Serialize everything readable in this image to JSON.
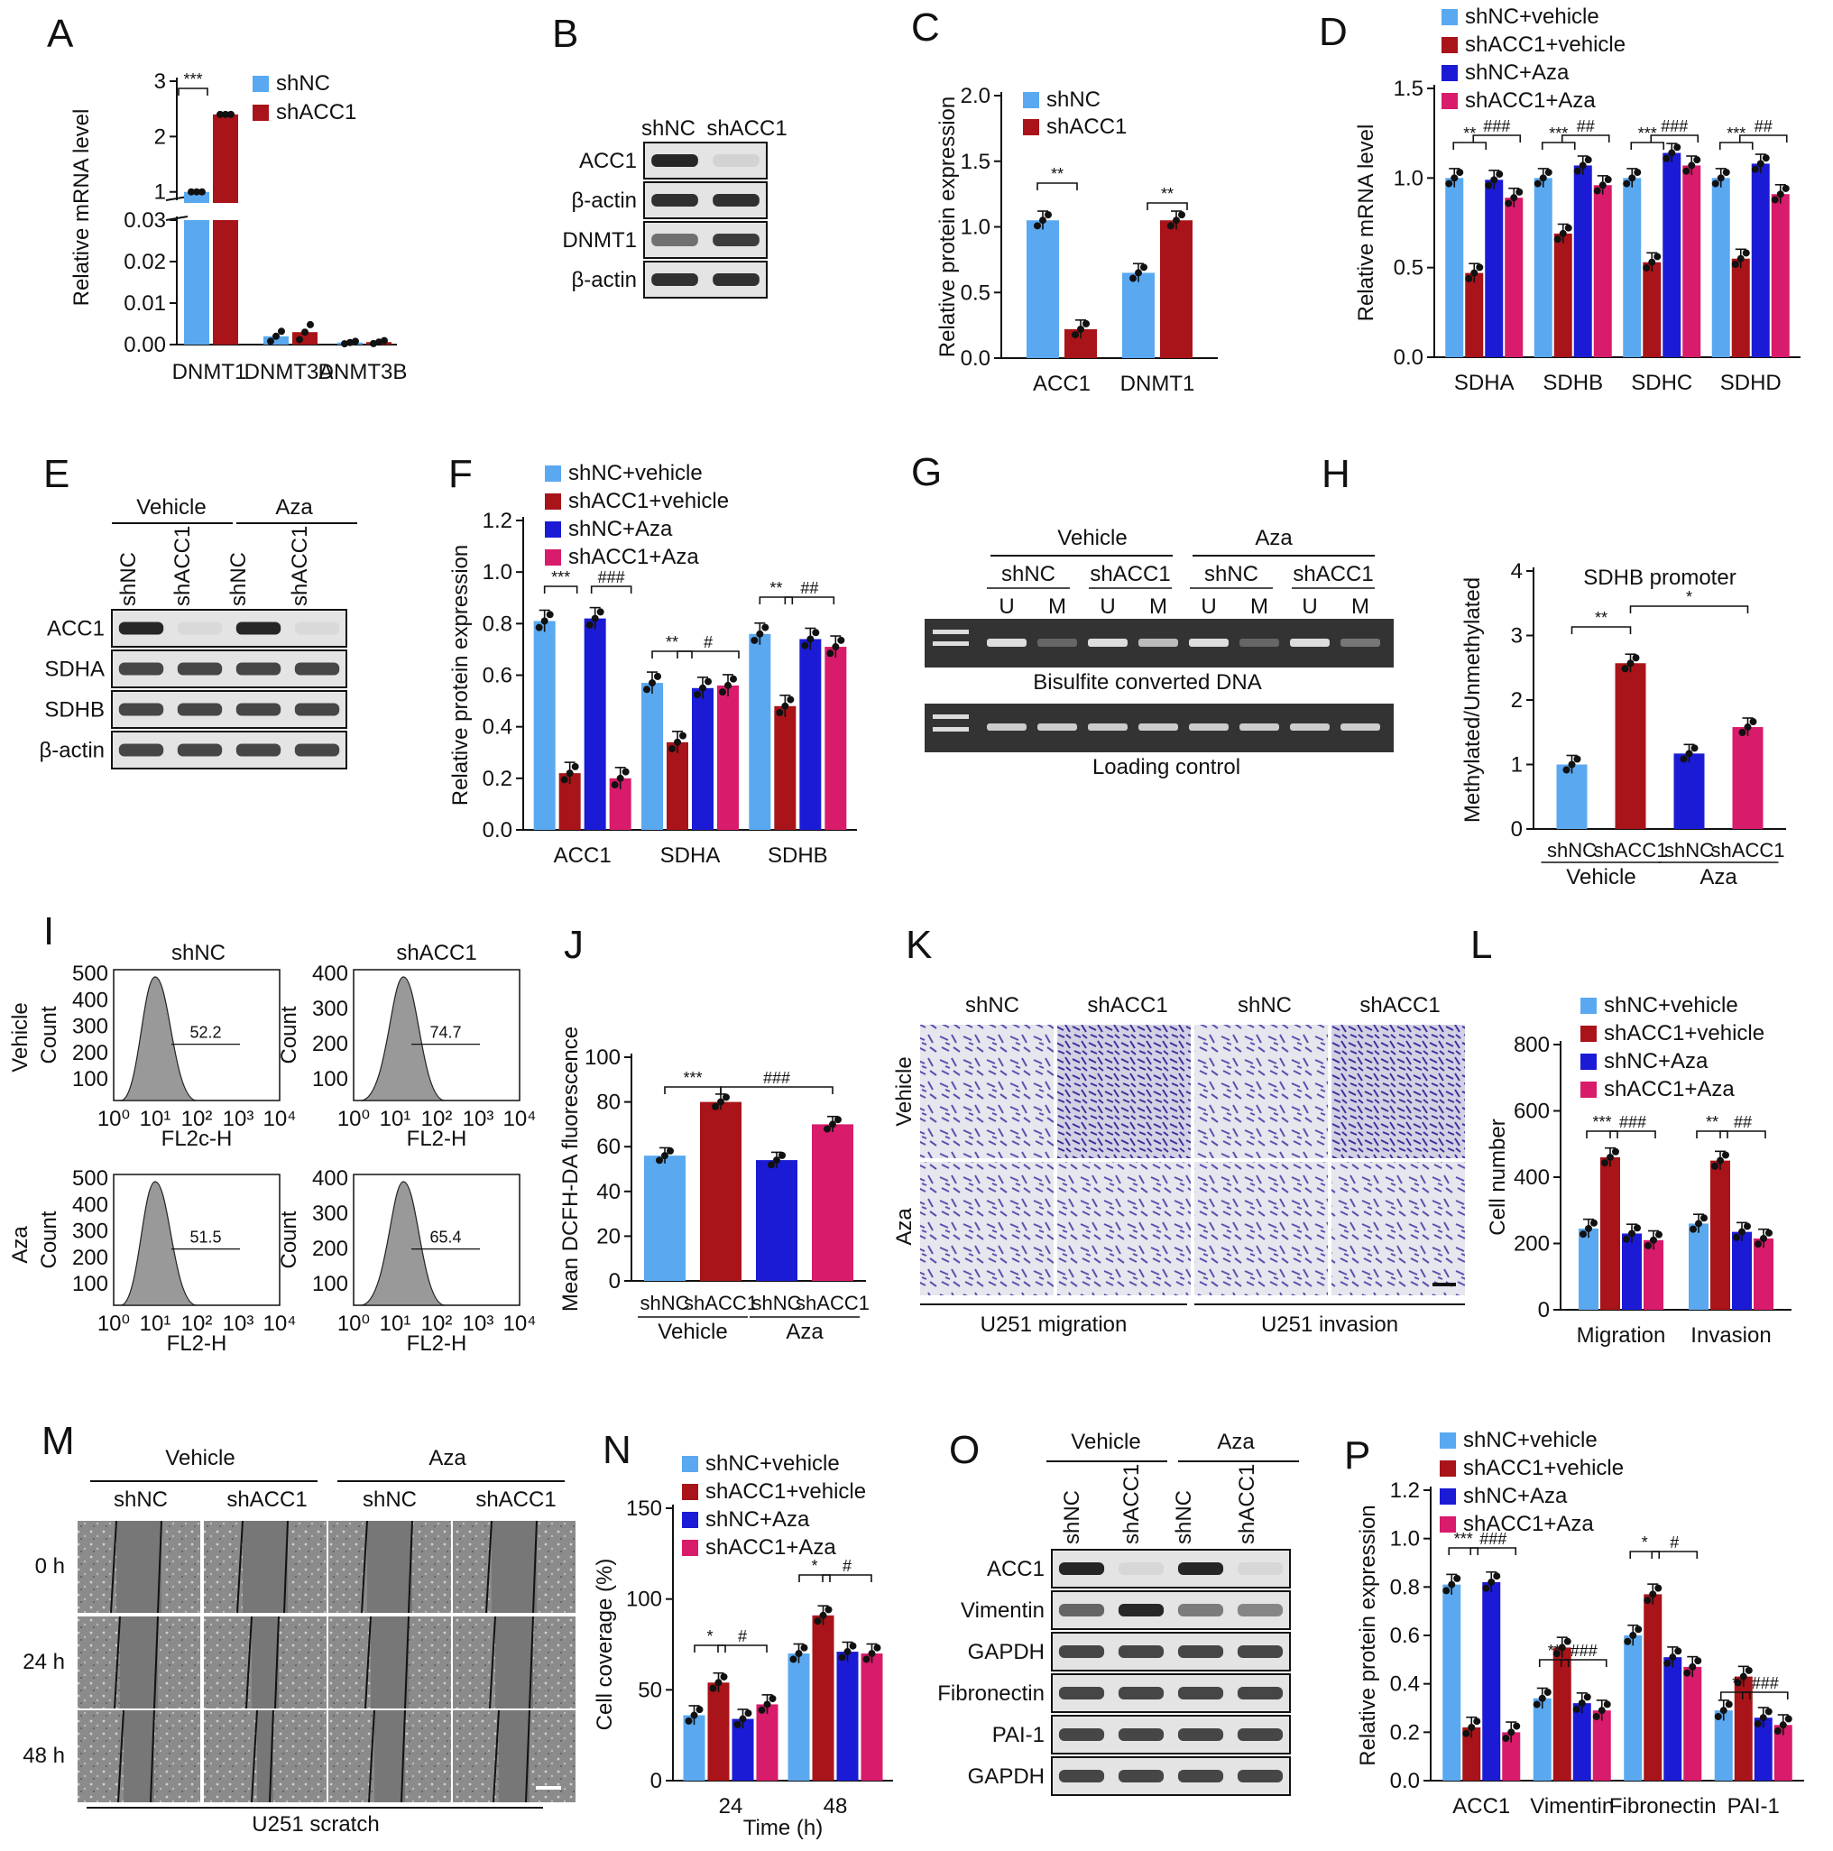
{
  "colors": {
    "shNC_vehicle": "#5aa9f0",
    "shACC1_vehicle": "#a81419",
    "shNC_aza": "#1b1bd6",
    "shACC1_aza": "#d81b6a",
    "gel": "#333",
    "blot": "#ddd"
  },
  "panel_letters": [
    "A",
    "B",
    "C",
    "D",
    "E",
    "F",
    "G",
    "H",
    "I",
    "J",
    "K",
    "L",
    "M",
    "N",
    "O",
    "P"
  ],
  "B": {
    "lanes": [
      "shNC",
      "shACC1"
    ],
    "rows": [
      "ACC1",
      "β-actin",
      "DNMT1",
      "β-actin"
    ]
  },
  "E": {
    "groups": [
      "Vehicle",
      "Aza"
    ],
    "lanes": [
      "shNC",
      "shACC1",
      "shNC",
      "shACC1"
    ],
    "rows": [
      "ACC1",
      "SDHA",
      "SDHB",
      "β-actin"
    ]
  },
  "G": {
    "groups": [
      "Vehicle",
      "Aza"
    ],
    "lanes": [
      "shNC",
      "shACC1",
      "shNC",
      "shACC1"
    ],
    "um": [
      "U",
      "M",
      "U",
      "M",
      "U",
      "M",
      "U",
      "M"
    ],
    "gel1": "Bisulfite converted DNA",
    "gel2": "Loading control"
  },
  "I": {
    "cols": [
      "shNC",
      "shACC1"
    ],
    "rows": [
      "Vehicle",
      "Aza"
    ],
    "ylabel": "Count",
    "xlabels": [
      "FL2c-H",
      "FL2-H",
      "FL2-H",
      "FL2-H"
    ],
    "gates": [
      "52.2",
      "74.7",
      "51.5",
      "65.4"
    ],
    "xticks": [
      "10⁰",
      "10¹",
      "10²",
      "10³",
      "10⁴"
    ],
    "yticks_a": [
      "100",
      "200",
      "300",
      "400",
      "500"
    ],
    "yticks_b": [
      "100",
      "200",
      "300",
      "400"
    ]
  },
  "K": {
    "cols": [
      "shNC",
      "shACC1",
      "shNC",
      "shACC1"
    ],
    "rows": [
      "Vehicle",
      "Aza"
    ],
    "bottom": [
      "U251 migration",
      "U251 invasion"
    ]
  },
  "M": {
    "groups": [
      "Vehicle",
      "Aza"
    ],
    "cols": [
      "shNC",
      "shACC1",
      "shNC",
      "shACC1"
    ],
    "rows": [
      "0 h",
      "24 h",
      "48 h"
    ],
    "bottom": "U251 scratch"
  },
  "O": {
    "groups": [
      "Vehicle",
      "Aza"
    ],
    "lanes": [
      "shNC",
      "shACC1",
      "shNC",
      "shACC1"
    ],
    "rows": [
      "ACC1",
      "Vimentin",
      "GAPDH",
      "Fibronectin",
      "PAI-1",
      "GAPDH"
    ]
  },
  "chart_data": [
    {
      "panel": "A",
      "type": "bar",
      "ylabel": "Relative mRNA level",
      "categories": [
        "DNMT1",
        "DNMT3A",
        "DNMT3B"
      ],
      "series": [
        {
          "name": "shNC",
          "values": [
            1.0,
            0.002,
            0.0005
          ]
        },
        {
          "name": "shACC1",
          "values": [
            2.4,
            0.003,
            0.0006
          ]
        }
      ],
      "yticks_upper": [
        "1",
        "2",
        "3"
      ],
      "yticks_lower": [
        "0.00",
        "0.01",
        "0.02",
        "0.03"
      ],
      "annotations": [
        "***"
      ]
    },
    {
      "panel": "C",
      "type": "bar",
      "ylabel": "Relative protein expression",
      "categories": [
        "ACC1",
        "DNMT1"
      ],
      "series": [
        {
          "name": "shNC",
          "values": [
            1.05,
            0.65
          ]
        },
        {
          "name": "shACC1",
          "values": [
            0.22,
            1.05
          ]
        }
      ],
      "ylim": [
        0,
        2.0
      ],
      "yticks": [
        "0.0",
        "0.5",
        "1.0",
        "1.5",
        "2.0"
      ],
      "annotations": [
        "**",
        "**"
      ]
    },
    {
      "panel": "D",
      "type": "bar",
      "ylabel": "Relative mRNA level",
      "categories": [
        "SDHA",
        "SDHB",
        "SDHC",
        "SDHD"
      ],
      "series": [
        {
          "name": "shNC+vehicle",
          "values": [
            1.0,
            1.0,
            1.0,
            1.0
          ]
        },
        {
          "name": "shACC1+vehicle",
          "values": [
            0.47,
            0.69,
            0.53,
            0.55
          ]
        },
        {
          "name": "shNC+Aza",
          "values": [
            0.99,
            1.07,
            1.14,
            1.08
          ]
        },
        {
          "name": "shACC1+Aza",
          "values": [
            0.89,
            0.96,
            1.07,
            0.91
          ]
        }
      ],
      "ylim": [
        0,
        1.5
      ],
      "yticks": [
        "0.0",
        "0.5",
        "1.0",
        "1.5"
      ],
      "annotations": [
        "**",
        "###",
        "***",
        "##",
        "***",
        "###",
        "***",
        "##"
      ]
    },
    {
      "panel": "F",
      "type": "bar",
      "ylabel": "Relative protein expression",
      "categories": [
        "ACC1",
        "SDHA",
        "SDHB"
      ],
      "series": [
        {
          "name": "shNC+vehicle",
          "values": [
            0.81,
            0.57,
            0.76
          ]
        },
        {
          "name": "shACC1+vehicle",
          "values": [
            0.22,
            0.34,
            0.48
          ]
        },
        {
          "name": "shNC+Aza",
          "values": [
            0.82,
            0.55,
            0.74
          ]
        },
        {
          "name": "shACC1+Aza",
          "values": [
            0.2,
            0.56,
            0.71
          ]
        }
      ],
      "ylim": [
        0,
        1.2
      ],
      "yticks": [
        "0.0",
        "0.2",
        "0.4",
        "0.6",
        "0.8",
        "1.0",
        "1.2"
      ],
      "annotations": [
        "***",
        "###",
        "**",
        "#",
        "**",
        "##"
      ]
    },
    {
      "panel": "H",
      "type": "bar",
      "title": "SDHB promoter",
      "ylabel": "Methylated/Unmethylated",
      "categories": [
        "shNC",
        "shACC1",
        "shNC",
        "shACC1"
      ],
      "groups": [
        "Vehicle",
        "Aza"
      ],
      "values": [
        1.0,
        2.57,
        1.17,
        1.58
      ],
      "ylim": [
        0,
        4
      ],
      "yticks": [
        "0",
        "1",
        "2",
        "3",
        "4"
      ],
      "annotations": [
        "**",
        "*"
      ]
    },
    {
      "panel": "J",
      "type": "bar",
      "ylabel": "Mean DCFH-DA fluorescence",
      "categories": [
        "shNC",
        "shACC1",
        "shNC",
        "shACC1"
      ],
      "groups": [
        "Vehicle",
        "Aza"
      ],
      "values": [
        56,
        80,
        54,
        70
      ],
      "ylim": [
        0,
        100
      ],
      "yticks": [
        "0",
        "20",
        "40",
        "60",
        "80",
        "100"
      ],
      "annotations": [
        "***",
        "###"
      ]
    },
    {
      "panel": "L",
      "type": "bar",
      "ylabel": "Cell number",
      "categories": [
        "Migration",
        "Invasion"
      ],
      "series": [
        {
          "name": "shNC+vehicle",
          "values": [
            245,
            260
          ]
        },
        {
          "name": "shACC1+vehicle",
          "values": [
            460,
            450
          ]
        },
        {
          "name": "shNC+Aza",
          "values": [
            230,
            235
          ]
        },
        {
          "name": "shACC1+Aza",
          "values": [
            210,
            215
          ]
        }
      ],
      "ylim": [
        0,
        800
      ],
      "yticks": [
        "0",
        "200",
        "400",
        "600",
        "800"
      ],
      "annotations": [
        "***",
        "###",
        "**",
        "##"
      ]
    },
    {
      "panel": "N",
      "type": "bar",
      "ylabel": "Cell coverage (%)",
      "xlabel": "Time (h)",
      "categories": [
        "24",
        "48"
      ],
      "series": [
        {
          "name": "shNC+vehicle",
          "values": [
            36,
            70
          ]
        },
        {
          "name": "shACC1+vehicle",
          "values": [
            54,
            91
          ]
        },
        {
          "name": "shNC+Aza",
          "values": [
            34,
            71
          ]
        },
        {
          "name": "shACC1+Aza",
          "values": [
            42,
            70
          ]
        }
      ],
      "ylim": [
        0,
        150
      ],
      "yticks": [
        "0",
        "50",
        "100",
        "150"
      ],
      "annotations": [
        "*",
        "#",
        "*",
        "#"
      ]
    },
    {
      "panel": "P",
      "type": "bar",
      "ylabel": "Relative protein expression",
      "categories": [
        "ACC1",
        "Vimentin",
        "Fibronectin",
        "PAI-1"
      ],
      "series": [
        {
          "name": "shNC+vehicle",
          "values": [
            0.81,
            0.34,
            0.6,
            0.29
          ]
        },
        {
          "name": "shACC1+vehicle",
          "values": [
            0.22,
            0.55,
            0.77,
            0.43
          ]
        },
        {
          "name": "shNC+Aza",
          "values": [
            0.82,
            0.32,
            0.51,
            0.26
          ]
        },
        {
          "name": "shACC1+Aza",
          "values": [
            0.2,
            0.29,
            0.47,
            0.23
          ]
        }
      ],
      "ylim": [
        0,
        1.2
      ],
      "yticks": [
        "0.0",
        "0.2",
        "0.4",
        "0.6",
        "0.8",
        "1.0",
        "1.2"
      ],
      "annotations": [
        "***",
        "###",
        "**",
        "###",
        "*",
        "#",
        "*",
        "###"
      ]
    }
  ]
}
